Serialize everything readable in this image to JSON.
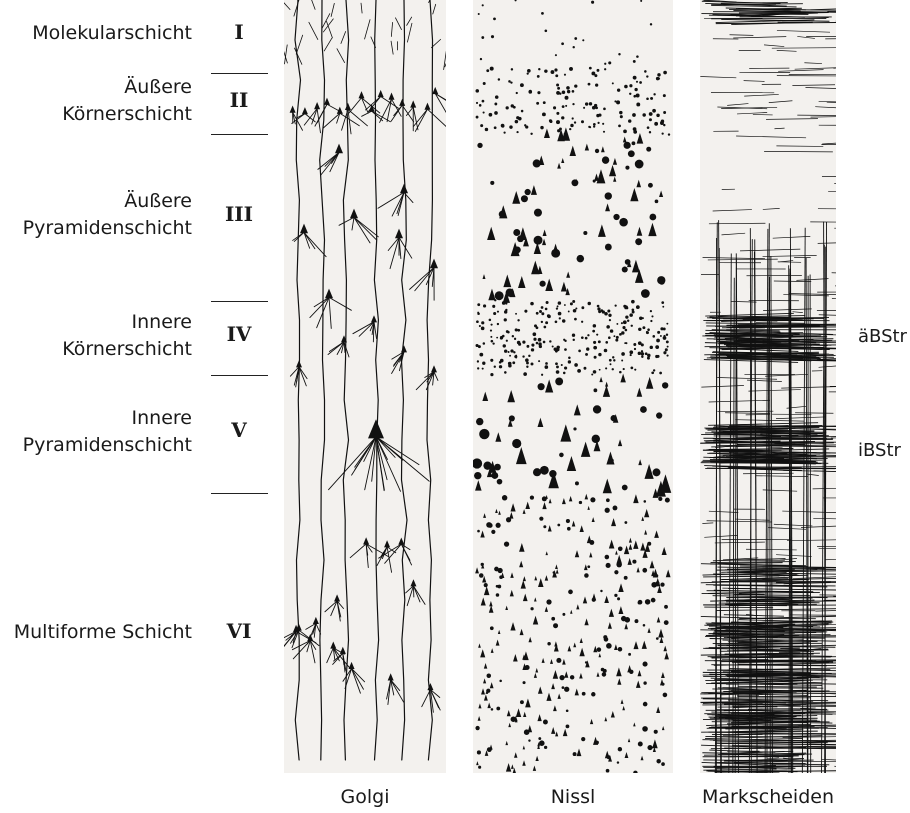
{
  "layers": [
    {
      "name": "Molekularschicht",
      "numeral": "I"
    },
    {
      "name": "Äußere\nKörnerschicht",
      "numeral": "II"
    },
    {
      "name": "Äußere\nPyramidenschicht",
      "numeral": "III"
    },
    {
      "name": "Innere\nKörnerschicht",
      "numeral": "IV"
    },
    {
      "name": "Innere\nPyramidenschicht",
      "numeral": "V"
    },
    {
      "name": "Multiforme Schicht",
      "numeral": "VI"
    }
  ],
  "columns": {
    "golgi": "Golgi",
    "nissl": "Nissl",
    "myelin": "Markscheiden"
  },
  "stripes": {
    "outer": "äBStr",
    "inner": "iBStr"
  },
  "colors": {
    "panel_background": "#f3f1ee",
    "ink": "#111111"
  }
}
